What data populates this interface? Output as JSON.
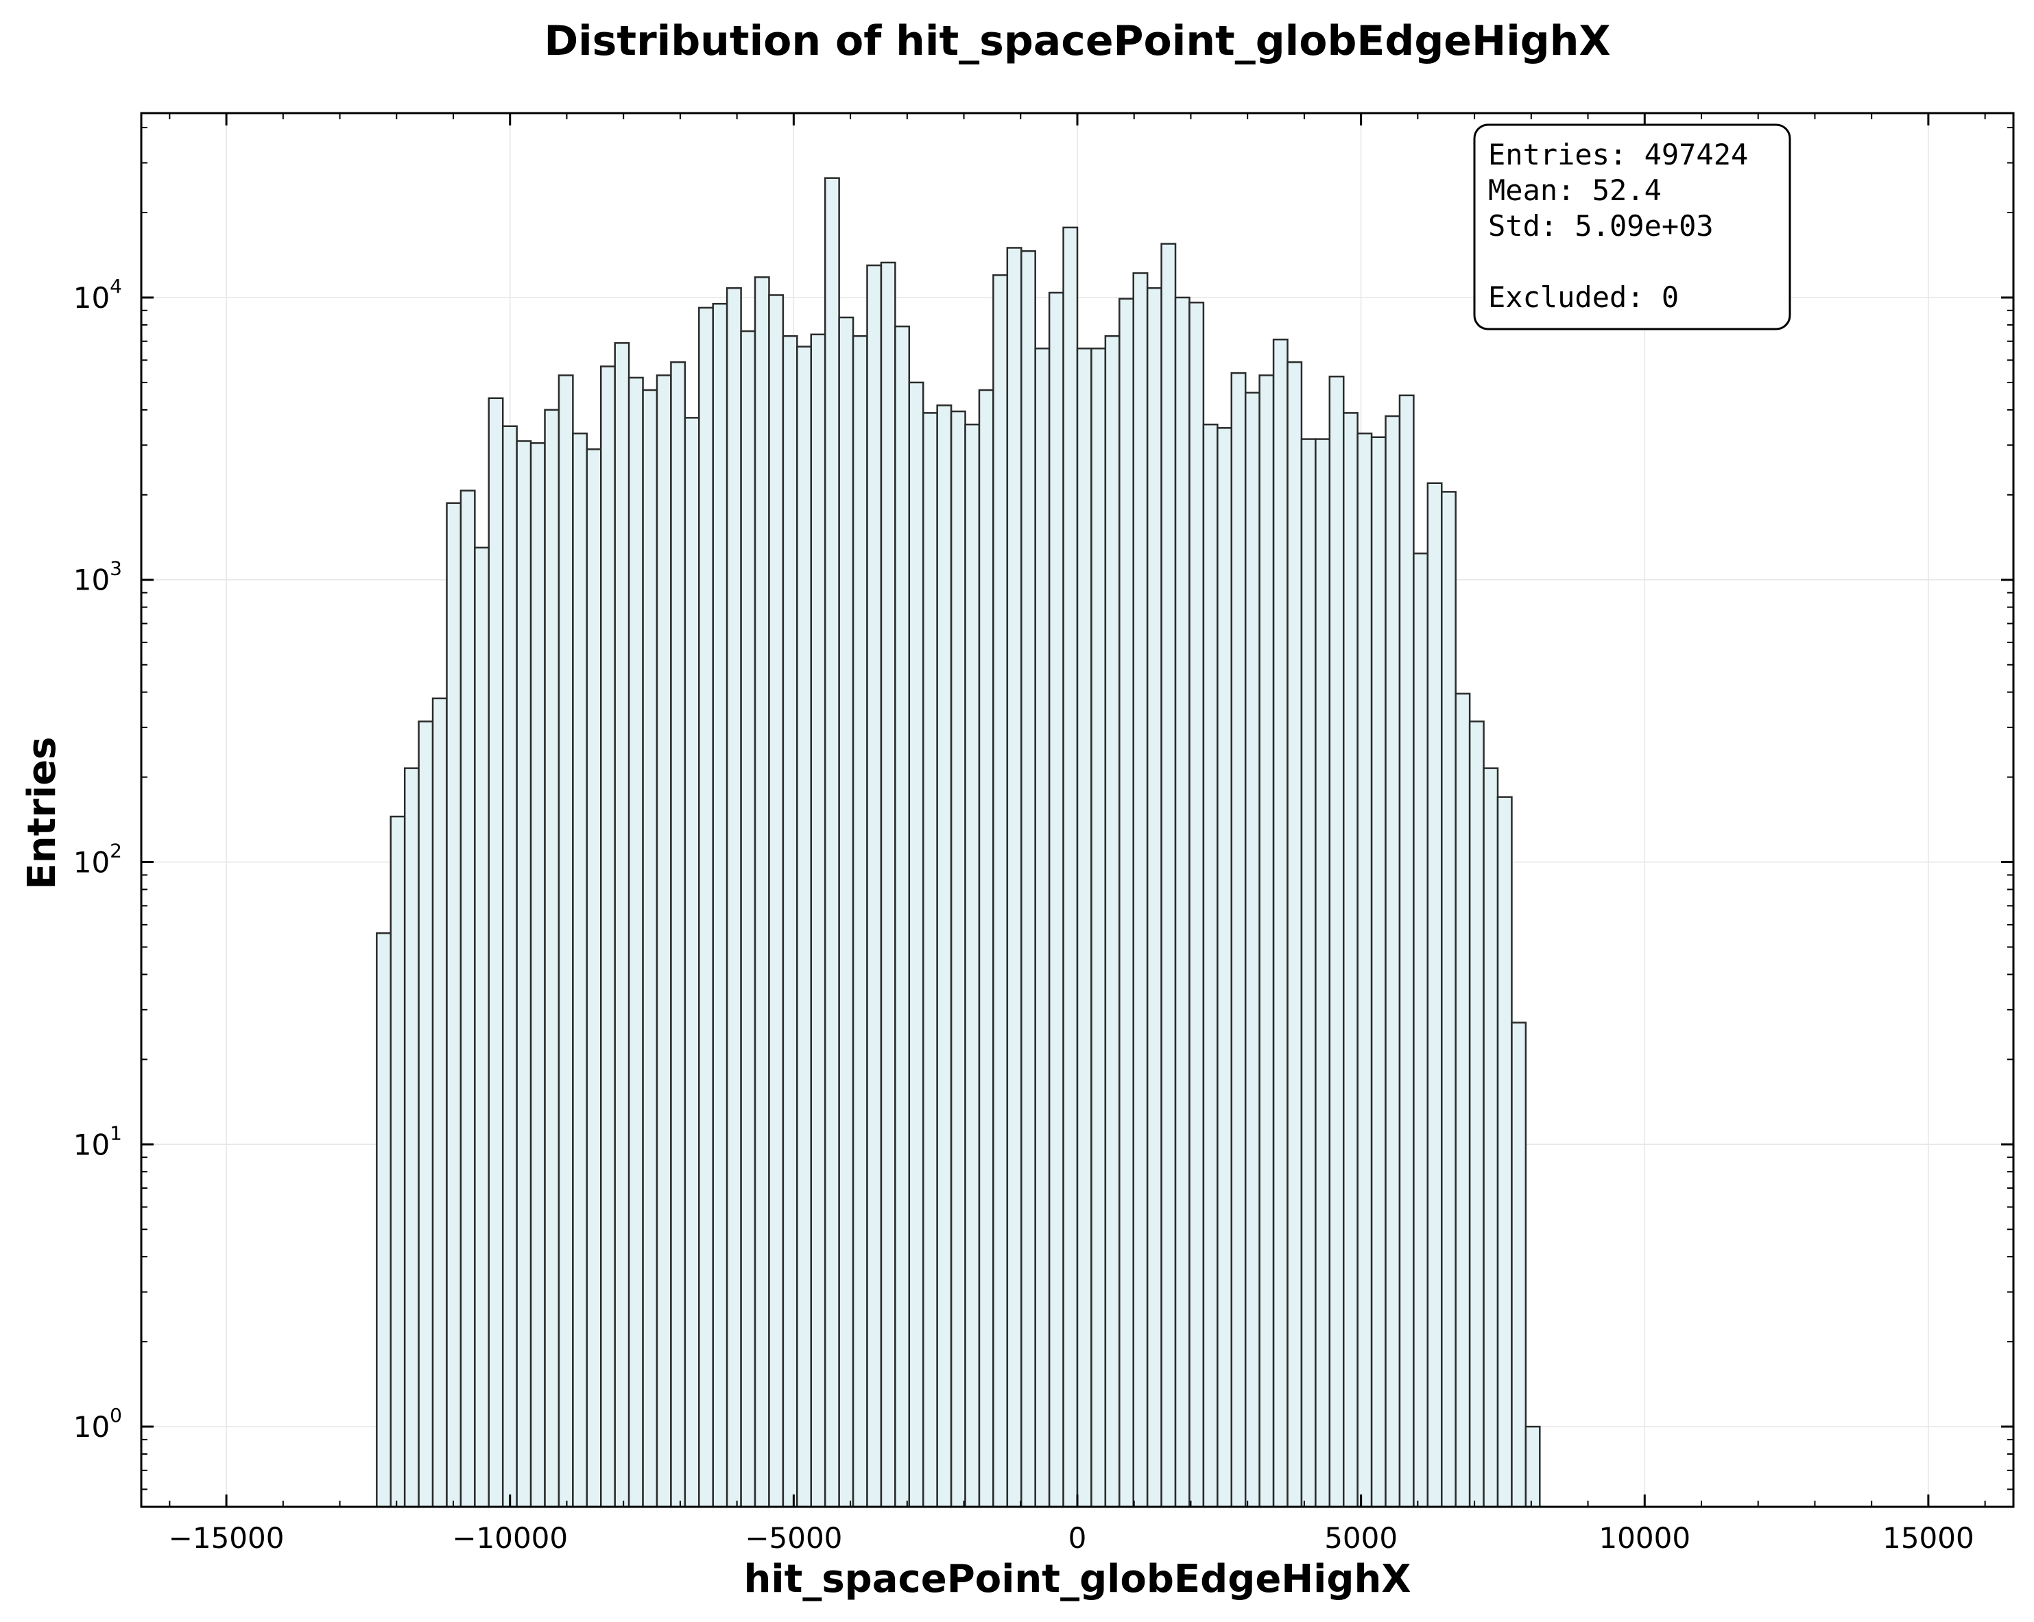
{
  "chart_data": {
    "type": "bar",
    "title": "Distribution of hit_spacePoint_globEdgeHighX",
    "xlabel": "hit_spacePoint_globEdgeHighX",
    "ylabel": "Entries",
    "yscale": "log",
    "xlim": [
      -16500,
      16500
    ],
    "ylim": [
      0.52,
      45000
    ],
    "grid": true,
    "bin_start": -12350,
    "bin_width": 247,
    "values": [
      56,
      145,
      215,
      315,
      380,
      1870,
      2070,
      1300,
      4400,
      3500,
      3100,
      3050,
      4000,
      5300,
      3300,
      2900,
      5700,
      6900,
      5200,
      4700,
      5300,
      5900,
      3750,
      9200,
      9500,
      10800,
      7600,
      11800,
      10200,
      7300,
      6700,
      7400,
      26500,
      8500,
      7300,
      13000,
      13300,
      7900,
      5000,
      3900,
      4150,
      3950,
      3550,
      4700,
      12000,
      15000,
      14600,
      6600,
      10400,
      17700,
      6600,
      6600,
      7300,
      9900,
      12200,
      10800,
      15500,
      10000,
      9600,
      3550,
      3450,
      5400,
      4600,
      5300,
      7100,
      5900,
      3150,
      3150,
      5250,
      3900,
      3300,
      3200,
      3800,
      4500,
      1240,
      2200,
      2050,
      395,
      315,
      215,
      170,
      27,
      1
    ],
    "x_ticks": [
      {
        "value": -15000,
        "label": "−15000"
      },
      {
        "value": -10000,
        "label": "−10000"
      },
      {
        "value": -5000,
        "label": "−5000"
      },
      {
        "value": 0,
        "label": "0"
      },
      {
        "value": 5000,
        "label": "5000"
      },
      {
        "value": 10000,
        "label": "10000"
      },
      {
        "value": 15000,
        "label": "15000"
      }
    ],
    "y_ticks": [
      {
        "value": 1,
        "base": "10",
        "exp": "0"
      },
      {
        "value": 10,
        "base": "10",
        "exp": "1"
      },
      {
        "value": 100,
        "base": "10",
        "exp": "2"
      },
      {
        "value": 1000,
        "base": "10",
        "exp": "3"
      },
      {
        "value": 10000,
        "base": "10",
        "exp": "4"
      }
    ],
    "colors": {
      "fill": "#e3f3f5",
      "edge": "#2b2b2b",
      "grid": "#e6e6e6"
    },
    "stats_box": {
      "entries": "Entries: 497424",
      "mean": "Mean: 52.4",
      "std": "Std: 5.09e+03",
      "excluded": "Excluded: 0",
      "placement": "top-right"
    }
  }
}
